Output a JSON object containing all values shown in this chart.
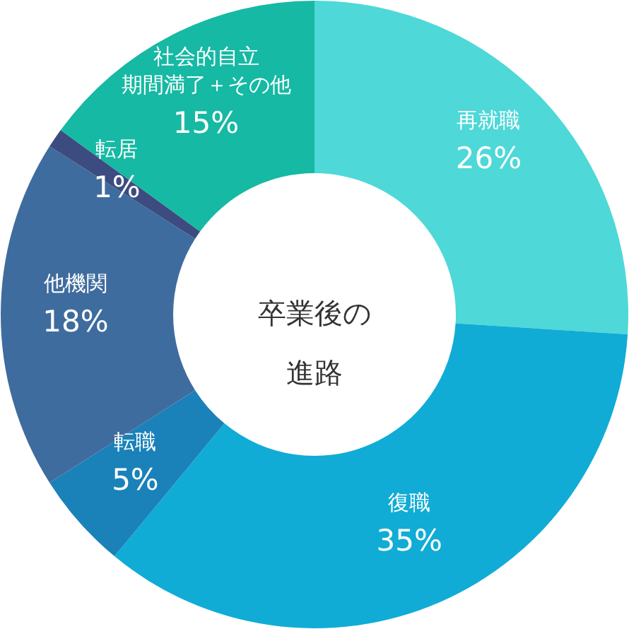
{
  "chart_data": {
    "type": "donut",
    "categories": [
      "再就職",
      "復職",
      "転職",
      "他機関",
      "転居",
      "社会的自立期間満了＋その他"
    ],
    "values": [
      26,
      35,
      5,
      18,
      1,
      15
    ],
    "value_labels": [
      "26%",
      "35%",
      "5%",
      "18%",
      "1%",
      "15%"
    ],
    "colors": [
      "#4ed8d8",
      "#10acd6",
      "#1a82b8",
      "#3f6c9e",
      "#3c4c80",
      "#16b9a3"
    ],
    "annotations": [
      "卒業後の進路"
    ]
  }
}
